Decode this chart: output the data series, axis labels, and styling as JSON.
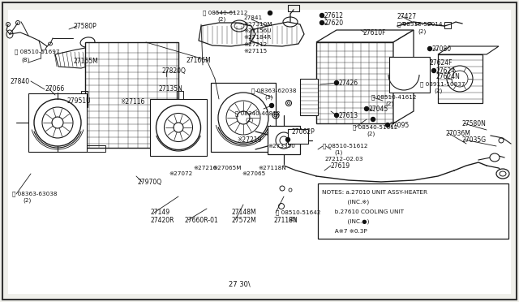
{
  "bg_color": "#f0f0eb",
  "border_color": "#555555",
  "line_color": "#1a1a1a",
  "text_color": "#111111",
  "fig_width": 6.4,
  "fig_height": 3.72,
  "dpi": 100,
  "notes_lines": [
    "NOTES: a.27010 UNIT ASSY-HEATER",
    "              (INC.※)",
    "       b.27610 COOLING UNIT",
    "              (INC.●)",
    "       A※7 ※0.3P"
  ]
}
